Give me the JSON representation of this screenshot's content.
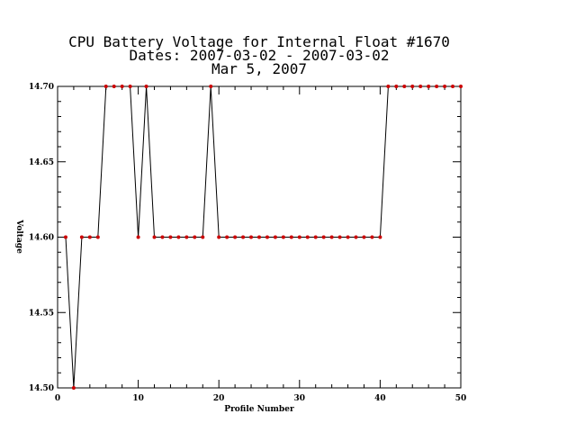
{
  "chart_data": {
    "type": "line",
    "title_lines": [
      "CPU Battery Voltage for Internal Float #1670",
      "Dates:  2007-03-02 -  2007-03-02",
      "Mar  5, 2007"
    ],
    "xlabel": "Profile Number",
    "ylabel": "Voltage",
    "xlim": [
      0,
      50
    ],
    "ylim": [
      14.5,
      14.7
    ],
    "xticks": [
      0,
      10,
      20,
      30,
      40,
      50
    ],
    "xtick_labels": [
      "0",
      "10",
      "20",
      "30",
      "40",
      "50"
    ],
    "yticks": [
      14.5,
      14.55,
      14.6,
      14.65,
      14.7
    ],
    "ytick_labels": [
      "14.50",
      "14.55",
      "14.60",
      "14.65",
      "14.70"
    ],
    "grid": false,
    "line_color": "#000000",
    "marker_color": "#cc0000",
    "series": [
      {
        "x": [
          1,
          2,
          3,
          4,
          5,
          6,
          7,
          8,
          9,
          10,
          11,
          12,
          13,
          14,
          15,
          16,
          17,
          18,
          19,
          20,
          21,
          22,
          23,
          24,
          25,
          26,
          27,
          28,
          29,
          30,
          31,
          32,
          33,
          34,
          35,
          36,
          37,
          38,
          39,
          40,
          41,
          42,
          43,
          44,
          45,
          46,
          47,
          48,
          49,
          50
        ],
        "y": [
          14.6,
          14.5,
          14.6,
          14.6,
          14.6,
          14.7,
          14.7,
          14.7,
          14.7,
          14.6,
          14.7,
          14.6,
          14.6,
          14.6,
          14.6,
          14.6,
          14.6,
          14.6,
          14.7,
          14.6,
          14.6,
          14.6,
          14.6,
          14.6,
          14.6,
          14.6,
          14.6,
          14.6,
          14.6,
          14.6,
          14.6,
          14.6,
          14.6,
          14.6,
          14.6,
          14.6,
          14.6,
          14.6,
          14.6,
          14.6,
          14.7,
          14.7,
          14.7,
          14.7,
          14.7,
          14.7,
          14.7,
          14.7,
          14.7,
          14.7
        ]
      }
    ]
  }
}
